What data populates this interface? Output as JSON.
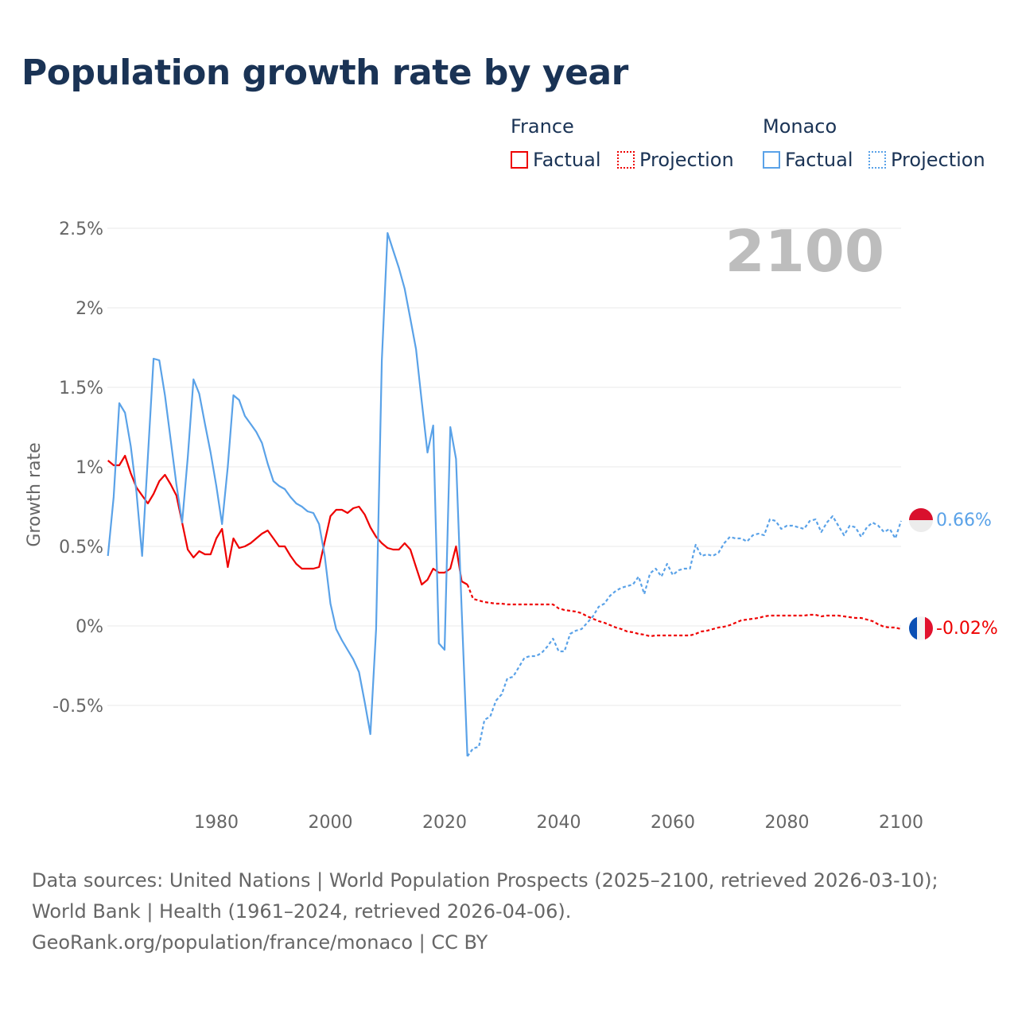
{
  "title": "Population growth rate by year",
  "legend": {
    "groups": [
      {
        "name": "France",
        "factual_label": "Factual",
        "projection_label": "Projection",
        "color": "#ee0000"
      },
      {
        "name": "Monaco",
        "factual_label": "Factual",
        "projection_label": "Projection",
        "color": "#5aa2e8"
      }
    ]
  },
  "year_display": "2100",
  "end_labels": {
    "monaco": "0.66%",
    "france": "-0.02%"
  },
  "footer": {
    "sources": "Data sources: United Nations | World Population Prospects (2025–2100, retrieved 2026-03-10); World Bank | Health (1961–2024, retrieved 2026-04-06).",
    "credit": "GeoRank.org/population/france/monaco | CC BY"
  },
  "chart_data": {
    "type": "line",
    "title": "Population growth rate by year",
    "xlabel": "",
    "ylabel": "Growth rate",
    "xlim": [
      1961,
      2100
    ],
    "ylim": [
      -1.0,
      2.5
    ],
    "x_ticks": [
      1980,
      2000,
      2020,
      2040,
      2060,
      2080,
      2100
    ],
    "x_tick_labels": [
      "1980",
      "2000",
      "2020",
      "2040",
      "2060",
      "2080",
      "2100"
    ],
    "y_ticks": [
      2.5,
      2,
      1.5,
      1,
      0.5,
      0,
      -0.5
    ],
    "y_tick_labels": [
      "2.5%",
      "2%",
      "1.5%",
      "1%",
      "0.5%",
      "0%",
      "-0.5%"
    ],
    "grid": true,
    "legend_position": "top-right",
    "factual_start_year": 1961,
    "projection_start_year": 2024,
    "series": [
      {
        "name": "France Factual",
        "country": "France",
        "kind": "factual",
        "color": "#ee0000",
        "values": [
          1.04,
          1.01,
          1.01,
          1.07,
          0.96,
          0.87,
          0.82,
          0.77,
          0.83,
          0.91,
          0.95,
          0.89,
          0.82,
          0.65,
          0.48,
          0.43,
          0.47,
          0.45,
          0.45,
          0.55,
          0.61,
          0.37,
          0.55,
          0.49,
          0.5,
          0.52,
          0.55,
          0.58,
          0.6,
          0.55,
          0.5,
          0.5,
          0.44,
          0.39,
          0.36,
          0.36,
          0.36,
          0.37,
          0.53,
          0.69,
          0.73,
          0.73,
          0.71,
          0.74,
          0.75,
          0.7,
          0.62,
          0.56,
          0.52,
          0.49,
          0.48,
          0.48,
          0.52,
          0.48,
          0.37,
          0.26,
          0.29,
          0.36,
          0.335,
          0.335,
          0.36,
          0.5,
          0.28,
          0.26
        ]
      },
      {
        "name": "France Projection",
        "country": "France",
        "kind": "projection",
        "color": "#ee0000",
        "values": [
          0.26,
          0.17,
          0.16,
          0.15,
          0.145,
          0.14,
          0.14,
          0.135,
          0.135,
          0.135,
          0.135,
          0.135,
          0.135,
          0.135,
          0.135,
          0.135,
          0.11,
          0.1,
          0.095,
          0.09,
          0.08,
          0.06,
          0.045,
          0.03,
          0.02,
          0.005,
          -0.01,
          -0.02,
          -0.035,
          -0.04,
          -0.05,
          -0.055,
          -0.065,
          -0.06,
          -0.06,
          -0.06,
          -0.06,
          -0.06,
          -0.06,
          -0.06,
          -0.05,
          -0.035,
          -0.03,
          -0.02,
          -0.01,
          -0.005,
          0.005,
          0.02,
          0.035,
          0.04,
          0.045,
          0.05,
          0.06,
          0.065,
          0.065,
          0.065,
          0.065,
          0.065,
          0.065,
          0.065,
          0.07,
          0.07,
          0.06,
          0.065,
          0.065,
          0.065,
          0.06,
          0.055,
          0.05,
          0.05,
          0.04,
          0.03,
          0.01,
          -0.005,
          -0.01,
          -0.01,
          -0.02
        ]
      },
      {
        "name": "Monaco Factual",
        "country": "Monaco",
        "kind": "factual",
        "color": "#5aa2e8",
        "values": [
          0.44,
          0.81,
          1.4,
          1.34,
          1.13,
          0.84,
          0.44,
          1.06,
          1.68,
          1.67,
          1.45,
          1.17,
          0.89,
          0.65,
          1.06,
          1.55,
          1.46,
          1.27,
          1.09,
          0.88,
          0.64,
          1.0,
          1.45,
          1.42,
          1.32,
          1.27,
          1.22,
          1.15,
          1.02,
          0.91,
          0.88,
          0.86,
          0.81,
          0.77,
          0.75,
          0.72,
          0.71,
          0.64,
          0.44,
          0.14,
          -0.02,
          -0.09,
          -0.15,
          -0.21,
          -0.29,
          -0.48,
          -0.68,
          -0.02,
          1.67,
          2.47,
          2.36,
          2.25,
          2.12,
          1.93,
          1.74,
          1.41,
          1.09,
          1.26,
          -0.11,
          -0.15,
          1.25,
          1.05,
          0.1,
          -0.82
        ]
      },
      {
        "name": "Monaco Projection",
        "country": "Monaco",
        "kind": "projection",
        "color": "#5aa2e8",
        "values": [
          -0.82,
          -0.77,
          -0.76,
          -0.59,
          -0.57,
          -0.47,
          -0.43,
          -0.33,
          -0.32,
          -0.26,
          -0.2,
          -0.19,
          -0.19,
          -0.17,
          -0.13,
          -0.08,
          -0.16,
          -0.16,
          -0.05,
          -0.03,
          -0.02,
          0.02,
          0.06,
          0.12,
          0.14,
          0.19,
          0.22,
          0.24,
          0.25,
          0.26,
          0.31,
          0.2,
          0.33,
          0.36,
          0.31,
          0.39,
          0.32,
          0.35,
          0.36,
          0.36,
          0.51,
          0.44,
          0.45,
          0.44,
          0.46,
          0.52,
          0.56,
          0.55,
          0.55,
          0.53,
          0.57,
          0.58,
          0.57,
          0.67,
          0.66,
          0.61,
          0.63,
          0.63,
          0.62,
          0.61,
          0.66,
          0.67,
          0.59,
          0.65,
          0.69,
          0.63,
          0.57,
          0.63,
          0.62,
          0.56,
          0.62,
          0.65,
          0.63,
          0.59,
          0.61,
          0.55,
          0.66
        ]
      }
    ]
  }
}
